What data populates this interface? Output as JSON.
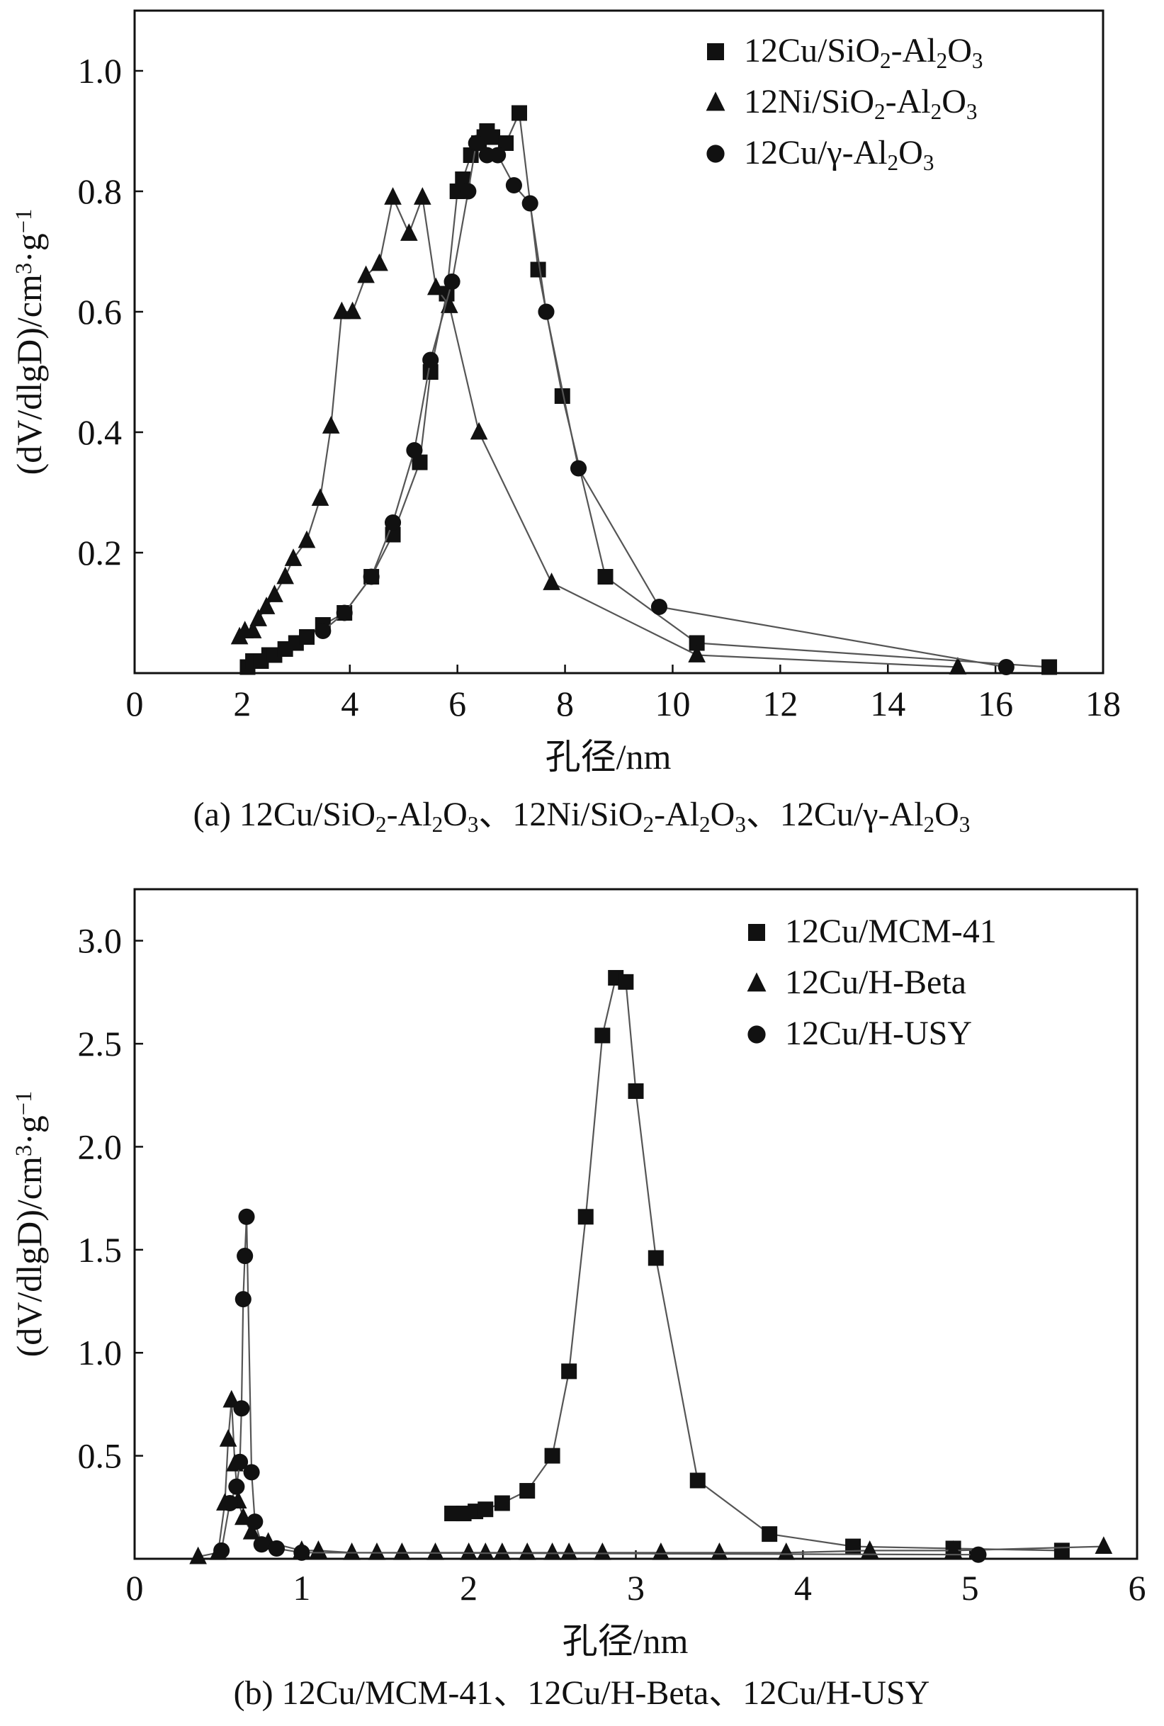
{
  "figure": {
    "panels": [
      {
        "caption": "(a) 12Cu/SiO₂-Al₂O₃、12Ni/SiO₂-Al₂O₃、12Cu/γ-Al₂O₃"
      },
      {
        "caption": "(b) 12Cu/MCM-41、12Cu/H-Beta、12Cu/H-USY"
      }
    ]
  },
  "chart_data": [
    {
      "type": "line",
      "title": "",
      "caption": "(a) 12Cu/SiO₂-Al₂O₃、12Ni/SiO₂-Al₂O₃、12Cu/γ-Al₂O₃",
      "xlabel": "孔径/nm",
      "ylabel": "(dV/dlgD)/cm³·g⁻¹",
      "xlim": [
        0,
        18
      ],
      "ylim": [
        0,
        1.1
      ],
      "xticks": [
        "0",
        "2",
        "4",
        "6",
        "8",
        "10",
        "12",
        "14",
        "16",
        "18"
      ],
      "yticks": [
        "0.2",
        "0.4",
        "0.6",
        "0.8",
        "1.0"
      ],
      "legend_position": "top-right",
      "series": [
        {
          "name": "12Cu/SiO₂-Al₂O₃",
          "marker": "square",
          "x": [
            2.1,
            2.2,
            2.35,
            2.5,
            2.6,
            2.8,
            3.0,
            3.2,
            3.5,
            3.9,
            4.4,
            4.8,
            5.3,
            5.5,
            5.8,
            6.0,
            6.1,
            6.25,
            6.4,
            6.5,
            6.55,
            6.65,
            6.9,
            7.15,
            7.5,
            7.95,
            8.75,
            10.45,
            17.0
          ],
          "y": [
            0.01,
            0.02,
            0.02,
            0.03,
            0.03,
            0.04,
            0.05,
            0.06,
            0.08,
            0.1,
            0.16,
            0.23,
            0.35,
            0.5,
            0.63,
            0.8,
            0.82,
            0.86,
            0.88,
            0.89,
            0.9,
            0.89,
            0.88,
            0.93,
            0.67,
            0.46,
            0.16,
            0.05,
            0.01
          ]
        },
        {
          "name": "12Ni/SiO₂-Al₂O₃",
          "marker": "triangle",
          "x": [
            1.95,
            2.05,
            2.2,
            2.3,
            2.45,
            2.6,
            2.8,
            2.95,
            3.2,
            3.45,
            3.65,
            3.85,
            4.05,
            4.3,
            4.55,
            4.8,
            5.1,
            5.35,
            5.6,
            5.85,
            6.4,
            7.75,
            10.45,
            15.3
          ],
          "y": [
            0.06,
            0.07,
            0.07,
            0.09,
            0.11,
            0.13,
            0.16,
            0.19,
            0.22,
            0.29,
            0.41,
            0.6,
            0.6,
            0.66,
            0.68,
            0.79,
            0.73,
            0.79,
            0.64,
            0.61,
            0.4,
            0.15,
            0.03,
            0.01
          ]
        },
        {
          "name": "12Cu/γ-Al₂O₃",
          "marker": "circle",
          "x": [
            3.5,
            3.9,
            4.4,
            4.8,
            5.2,
            5.5,
            5.9,
            6.2,
            6.35,
            6.55,
            6.75,
            7.05,
            7.35,
            7.65,
            8.25,
            9.75,
            16.2
          ],
          "y": [
            0.07,
            0.1,
            0.16,
            0.25,
            0.37,
            0.52,
            0.65,
            0.8,
            0.88,
            0.86,
            0.86,
            0.81,
            0.78,
            0.6,
            0.34,
            0.11,
            0.01
          ]
        }
      ]
    },
    {
      "type": "line",
      "title": "",
      "caption": "(b) 12Cu/MCM-41、12Cu/H-Beta、12Cu/H-USY",
      "xlabel": "孔径/nm",
      "ylabel": "(dV/dlgD)/cm³·g⁻¹",
      "xlim": [
        0,
        6
      ],
      "ylim": [
        0,
        3.25
      ],
      "xticks": [
        "0",
        "1",
        "2",
        "3",
        "4",
        "5",
        "6"
      ],
      "yticks": [
        "0.5",
        "1.0",
        "1.5",
        "2.0",
        "2.5",
        "3.0"
      ],
      "legend_position": "top-right",
      "series": [
        {
          "name": "12Cu/MCM-41",
          "marker": "square",
          "x": [
            1.9,
            1.97,
            2.04,
            2.1,
            2.2,
            2.35,
            2.5,
            2.6,
            2.7,
            2.8,
            2.88,
            2.94,
            3.0,
            3.12,
            3.37,
            3.8,
            4.3,
            4.9,
            5.55
          ],
          "y": [
            0.22,
            0.22,
            0.23,
            0.24,
            0.27,
            0.33,
            0.5,
            0.91,
            1.66,
            2.54,
            2.82,
            2.8,
            2.27,
            1.46,
            0.38,
            0.12,
            0.06,
            0.05,
            0.04
          ]
        },
        {
          "name": "12Cu/H-Beta",
          "marker": "triangle",
          "x": [
            0.38,
            0.5,
            0.54,
            0.56,
            0.58,
            0.6,
            0.62,
            0.65,
            0.7,
            0.8,
            1.0,
            1.1,
            1.3,
            1.45,
            1.6,
            1.8,
            2.0,
            2.1,
            2.2,
            2.35,
            2.5,
            2.6,
            2.8,
            3.15,
            3.5,
            3.9,
            4.4,
            4.9,
            5.8
          ],
          "y": [
            0.01,
            0.03,
            0.27,
            0.58,
            0.77,
            0.46,
            0.28,
            0.2,
            0.13,
            0.08,
            0.04,
            0.04,
            0.03,
            0.03,
            0.03,
            0.03,
            0.03,
            0.03,
            0.03,
            0.03,
            0.03,
            0.03,
            0.03,
            0.03,
            0.03,
            0.03,
            0.04,
            0.04,
            0.06
          ]
        },
        {
          "name": "12Cu/H-USY",
          "marker": "circle",
          "x": [
            0.52,
            0.57,
            0.61,
            0.63,
            0.64,
            0.65,
            0.66,
            0.67,
            0.7,
            0.72,
            0.76,
            0.85,
            1.0,
            5.05
          ],
          "y": [
            0.04,
            0.27,
            0.35,
            0.47,
            0.73,
            1.26,
            1.47,
            1.66,
            0.42,
            0.18,
            0.07,
            0.05,
            0.03,
            0.02
          ]
        }
      ]
    }
  ]
}
